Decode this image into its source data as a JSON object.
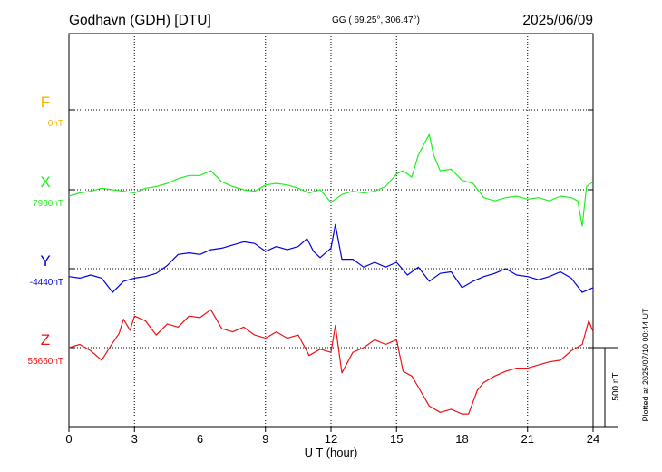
{
  "header": {
    "station": "Godhavn (GDH)  [DTU]",
    "coords": "GG ( 69.25°, 306.47°)",
    "date": "2025/06/09"
  },
  "colors": {
    "F": "#f2b200",
    "X": "#22ee22",
    "Y": "#0000dd",
    "Z": "#ee1111",
    "axis": "#000000",
    "grid": "#000000"
  },
  "chart_data": {
    "type": "line",
    "xlabel": "U T (hour)",
    "xlim": [
      0,
      24
    ],
    "xticks": [
      0,
      3,
      6,
      9,
      12,
      15,
      18,
      21,
      24
    ],
    "grid": true,
    "scale": {
      "label": "500 nT",
      "nT": 500
    },
    "footnote": "Plotted at 2025/07/10 00:44 UT",
    "series": [
      {
        "name": "F",
        "baseline": "0nT",
        "color": "#f2b200",
        "x": [],
        "y": []
      },
      {
        "name": "X",
        "baseline": "7960nT",
        "color": "#22ee22",
        "x": [
          0,
          0.5,
          1,
          1.5,
          2,
          2.5,
          3,
          3.5,
          4,
          4.5,
          5,
          5.5,
          6,
          6.5,
          7,
          7.5,
          8,
          8.5,
          9,
          9.5,
          10,
          10.5,
          11,
          11.5,
          12,
          12.5,
          13,
          13.5,
          14,
          14.5,
          15,
          15.3,
          15.7,
          16,
          16.3,
          16.5,
          16.7,
          17,
          17.5,
          18,
          18.5,
          19,
          19.5,
          20,
          20.5,
          21,
          21.5,
          22,
          22.5,
          23,
          23.3,
          23.5,
          23.7,
          24
        ],
        "y": [
          -40,
          -20,
          -10,
          10,
          0,
          -10,
          -20,
          10,
          20,
          40,
          70,
          90,
          90,
          120,
          50,
          20,
          0,
          -10,
          30,
          40,
          30,
          10,
          -20,
          0,
          -80,
          -30,
          -10,
          -20,
          -10,
          20,
          100,
          120,
          80,
          220,
          300,
          350,
          220,
          120,
          130,
          60,
          40,
          -50,
          -70,
          -50,
          -40,
          -60,
          -50,
          -70,
          -40,
          -50,
          -70,
          -230,
          20,
          50
        ]
      },
      {
        "name": "Y",
        "baseline": "-4440nT",
        "color": "#0000dd",
        "x": [
          0,
          0.5,
          1,
          1.5,
          2,
          2.5,
          3,
          3.5,
          4,
          4.5,
          5,
          5.5,
          6,
          6.5,
          7,
          7.5,
          8,
          8.5,
          9,
          9.5,
          10,
          10.5,
          10.9,
          11.2,
          11.5,
          12,
          12.2,
          12.5,
          13,
          13.5,
          14,
          14.5,
          15,
          15.5,
          16,
          16.5,
          17,
          17.5,
          18,
          18.5,
          19,
          19.5,
          20,
          20.5,
          21,
          21.5,
          22,
          22.5,
          23,
          23.5,
          24
        ],
        "y": [
          -50,
          -60,
          -40,
          -60,
          -150,
          -80,
          -60,
          -50,
          -30,
          20,
          90,
          100,
          90,
          120,
          130,
          150,
          170,
          160,
          110,
          140,
          120,
          140,
          190,
          110,
          70,
          130,
          280,
          60,
          60,
          10,
          40,
          10,
          40,
          -40,
          10,
          -80,
          -30,
          -20,
          -120,
          -80,
          -50,
          -30,
          0,
          -40,
          -50,
          -70,
          -50,
          -20,
          -60,
          -150,
          -120
        ]
      },
      {
        "name": "Z",
        "baseline": "55660nT",
        "color": "#ee1111",
        "x": [
          0,
          0.5,
          1,
          1.5,
          2,
          2.3,
          2.5,
          2.8,
          3,
          3.5,
          4,
          4.5,
          5,
          5.5,
          6,
          6.5,
          7,
          7.5,
          8,
          8.5,
          9,
          9.5,
          10,
          10.5,
          11,
          11.5,
          12,
          12.2,
          12.5,
          13,
          13.5,
          14,
          14.5,
          15,
          15.3,
          15.7,
          16,
          16.5,
          17,
          17.5,
          18,
          18.3,
          18.7,
          19,
          19.5,
          20,
          20.5,
          21,
          21.5,
          22,
          22.5,
          23,
          23.5,
          23.8,
          24
        ],
        "y": [
          0,
          20,
          -20,
          -80,
          30,
          90,
          180,
          110,
          200,
          170,
          80,
          150,
          130,
          200,
          190,
          240,
          120,
          100,
          130,
          80,
          60,
          100,
          60,
          80,
          -50,
          -10,
          -30,
          140,
          -160,
          -30,
          0,
          50,
          20,
          50,
          -150,
          -180,
          -250,
          -370,
          -410,
          -390,
          -420,
          -420,
          -270,
          -220,
          -180,
          -150,
          -130,
          -130,
          -110,
          -90,
          -80,
          -20,
          20,
          170,
          100
        ]
      }
    ]
  }
}
